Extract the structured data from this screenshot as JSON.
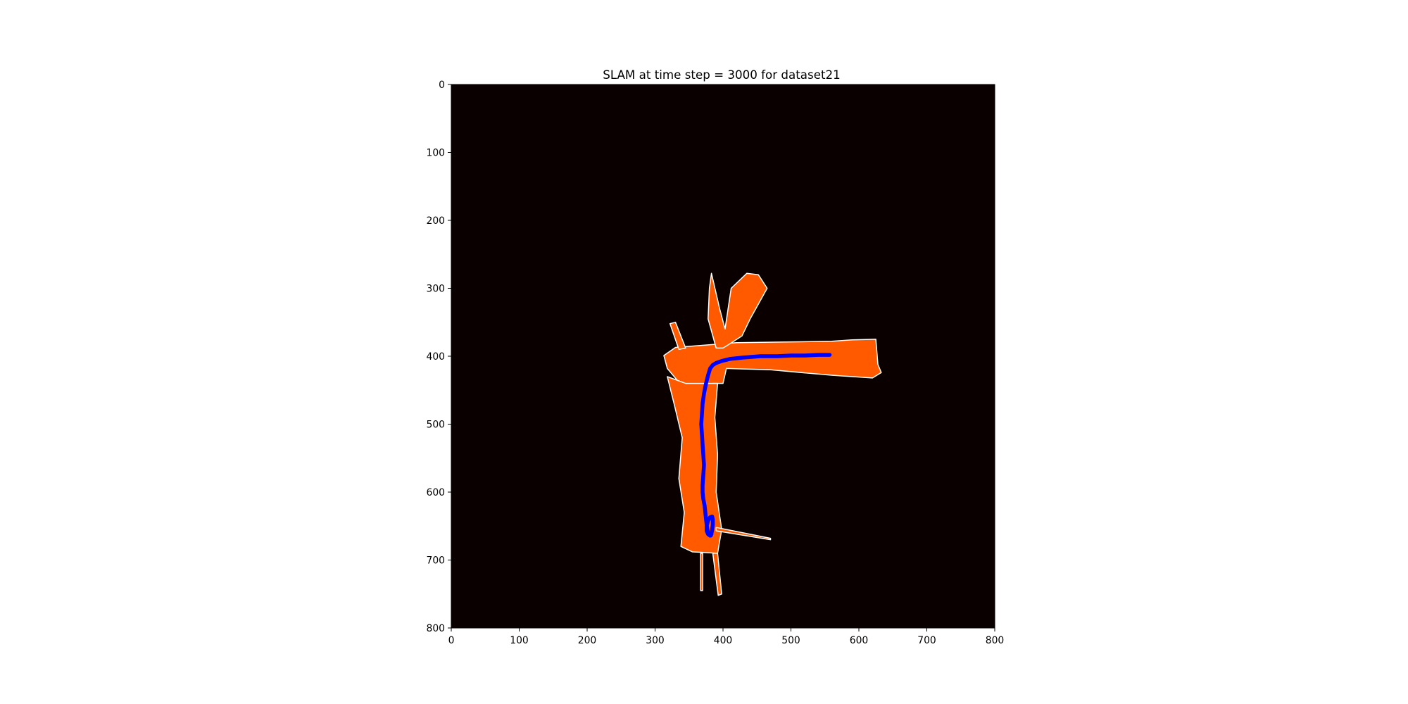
{
  "chart_data": {
    "type": "heatmap",
    "title": "SLAM at time step = 3000 for dataset21",
    "xlabel": "",
    "ylabel": "",
    "xlim": [
      0,
      800
    ],
    "ylim": [
      800,
      0
    ],
    "y_axis_inverted": true,
    "x_ticks": [
      "0",
      "100",
      "200",
      "300",
      "400",
      "500",
      "600",
      "700",
      "800"
    ],
    "y_ticks": [
      "0",
      "100",
      "200",
      "300",
      "400",
      "500",
      "600",
      "700",
      "800"
    ],
    "grid": false,
    "legend": "none",
    "colors": {
      "unknown_background": "#0b0000",
      "free_space": "#ff5a00",
      "obstacle_walls": "#ffffff",
      "trajectory": "#0000ff"
    },
    "occupancy_regions": [
      {
        "name": "horizontal corridor",
        "polygon": [
          [
            313,
            399
          ],
          [
            330,
            387
          ],
          [
            420,
            380
          ],
          [
            560,
            378
          ],
          [
            590,
            376
          ],
          [
            625,
            375
          ],
          [
            628,
            412
          ],
          [
            633,
            424
          ],
          [
            620,
            432
          ],
          [
            560,
            428
          ],
          [
            470,
            420
          ],
          [
            405,
            418
          ],
          [
            400,
            440
          ],
          [
            385,
            440
          ],
          [
            385,
            450
          ],
          [
            345,
            450
          ],
          [
            318,
            418
          ]
        ]
      },
      {
        "name": "vertical corridor",
        "polygon": [
          [
            345,
            440
          ],
          [
            392,
            440
          ],
          [
            388,
            490
          ],
          [
            392,
            545
          ],
          [
            390,
            600
          ],
          [
            398,
            655
          ],
          [
            392,
            690
          ],
          [
            355,
            688
          ],
          [
            338,
            680
          ],
          [
            343,
            630
          ],
          [
            335,
            580
          ],
          [
            340,
            520
          ],
          [
            328,
            470
          ],
          [
            318,
            430
          ]
        ]
      },
      {
        "name": "upper beams",
        "polygon": [
          [
            383,
            278
          ],
          [
            395,
            330
          ],
          [
            403,
            360
          ],
          [
            412,
            300
          ],
          [
            435,
            278
          ],
          [
            452,
            280
          ],
          [
            465,
            300
          ],
          [
            440,
            345
          ],
          [
            428,
            370
          ],
          [
            405,
            385
          ],
          [
            400,
            388
          ],
          [
            390,
            388
          ],
          [
            378,
            345
          ],
          [
            380,
            300
          ]
        ]
      },
      {
        "name": "left beam",
        "polygon": [
          [
            322,
            352
          ],
          [
            330,
            350
          ],
          [
            345,
            388
          ],
          [
            335,
            390
          ]
        ]
      },
      {
        "name": "lower beam",
        "polygon": [
          [
            385,
            690
          ],
          [
            392,
            690
          ],
          [
            398,
            750
          ],
          [
            393,
            752
          ]
        ]
      },
      {
        "name": "lower left ray",
        "polygon": [
          [
            367,
            690
          ],
          [
            370,
            690
          ],
          [
            370,
            745
          ],
          [
            367,
            745
          ]
        ]
      },
      {
        "name": "right rays",
        "polygon": [
          [
            390,
            652
          ],
          [
            470,
            668
          ],
          [
            470,
            670
          ],
          [
            390,
            657
          ]
        ]
      }
    ],
    "trajectory": {
      "name": "",
      "x": [
        557,
        540,
        520,
        500,
        480,
        455,
        430,
        410,
        398,
        390,
        385,
        381,
        378,
        375,
        372,
        370,
        369,
        368,
        369,
        370,
        371,
        372,
        371,
        370,
        370,
        371,
        373,
        374,
        375,
        376,
        377,
        378,
        380,
        382,
        383,
        384,
        385,
        385,
        384,
        381,
        378,
        376,
        376,
        378,
        381,
        383
      ],
      "y": [
        398,
        398,
        399,
        399,
        400,
        400,
        402,
        404,
        407,
        410,
        413,
        418,
        428,
        440,
        455,
        470,
        485,
        500,
        515,
        530,
        545,
        560,
        575,
        590,
        600,
        610,
        620,
        630,
        640,
        648,
        655,
        660,
        662,
        664,
        661,
        655,
        648,
        640,
        636,
        637,
        642,
        650,
        657,
        662,
        664,
        662
      ]
    }
  }
}
